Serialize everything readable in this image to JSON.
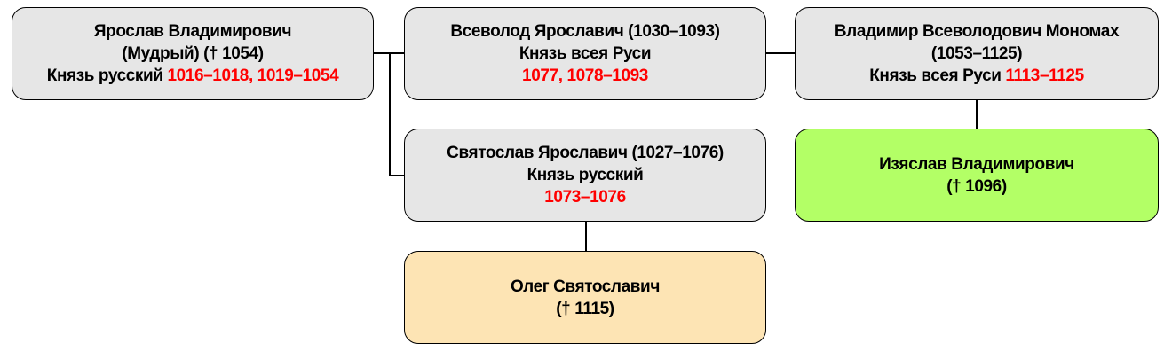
{
  "nodes": {
    "yaroslav": {
      "line1": "Ярослав Владимирович",
      "line2": "(Мудрый) († 1054)",
      "line3_prefix": "Князь русский ",
      "line3_dates": "1016–1018, 1019–1054"
    },
    "vsevolod": {
      "line1": "Всеволод Ярославич (1030–1093)",
      "line2": "Князь всея Руси",
      "line3_dates": "1077, 1078–1093"
    },
    "vladimir": {
      "line1": "Владимир Всеволодович Мономах",
      "line2": "(1053–1125)",
      "line3_prefix": "Князь всея Руси ",
      "line3_dates": "1113–1125"
    },
    "svyatoslav": {
      "line1": "Святослав Ярославич (1027–1076)",
      "line2": "Князь русский",
      "line3_dates": "1073–1076"
    },
    "izyaslav": {
      "line1": "Изяслав Владимирович",
      "line2": "(† 1096)"
    },
    "oleg": {
      "line1": "Олег Святославич",
      "line2": "(† 1115)"
    }
  },
  "colors": {
    "default": "#e6e6e6",
    "izyaslav": "#b3ff66",
    "oleg": "#fde4b4",
    "dates": "#ff0000"
  }
}
